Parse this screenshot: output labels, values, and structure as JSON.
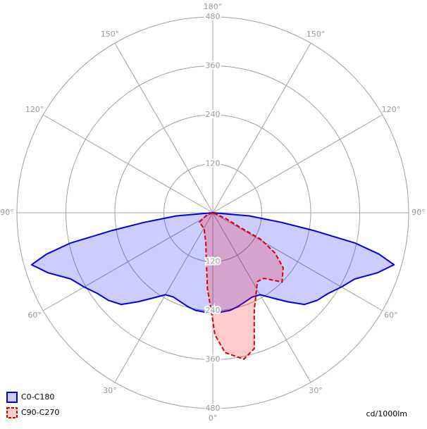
{
  "chart_data": {
    "type": "polar",
    "rlim": [
      0,
      480
    ],
    "rticks": [
      120,
      240,
      360,
      480
    ],
    "angle_ticks": [
      {
        "value": 0,
        "label": "0°"
      },
      {
        "value": 30,
        "label": "30°"
      },
      {
        "value": 60,
        "label": "60°"
      },
      {
        "value": 90,
        "label": "90°"
      },
      {
        "value": 120,
        "label": "120°"
      },
      {
        "value": 150,
        "label": "150°"
      },
      {
        "value": 180,
        "label": "180°"
      }
    ],
    "unit_label": "cd/1000lm",
    "legend": "bottom-left",
    "series": [
      {
        "name": "C0-C180",
        "color": "#0000dd",
        "fill": "#0000ff",
        "dashed": false,
        "x": [
          -90,
          -85,
          -82,
          -80,
          -78,
          -76,
          -74,
          -72,
          -70,
          -65,
          -60,
          -55,
          -50,
          -45,
          -40,
          -35,
          -30,
          -25,
          -20,
          -15,
          -10,
          0,
          10,
          15,
          20,
          25,
          30,
          35,
          40,
          45,
          50,
          55,
          60,
          65,
          70,
          72,
          74,
          76,
          78,
          80,
          82,
          85,
          90
        ],
        "values": [
          0,
          90,
          170,
          250,
          356,
          420,
          462,
          445,
          430,
          384,
          364,
          345,
          334,
          318,
          285,
          255,
          232,
          228,
          232,
          238,
          243,
          247,
          243,
          238,
          232,
          228,
          232,
          255,
          285,
          318,
          334,
          345,
          364,
          384,
          430,
          445,
          462,
          420,
          356,
          250,
          170,
          90,
          0
        ]
      },
      {
        "name": "C90-C270",
        "color": "#dd0000",
        "fill": "#ff0000",
        "dashed": true,
        "x": [
          -90,
          -70,
          -55,
          -28,
          -13,
          -7,
          -4,
          -1,
          1,
          5,
          12,
          17,
          23,
          33,
          38,
          45,
          52,
          57,
          61,
          62,
          66,
          90
        ],
        "values": [
          0,
          15,
          40,
          45,
          76,
          127,
          187,
          238,
          299,
          344,
          367,
          348,
          260,
          201,
          204,
          240,
          219,
          182,
          135,
          74,
          34,
          0
        ]
      }
    ]
  }
}
